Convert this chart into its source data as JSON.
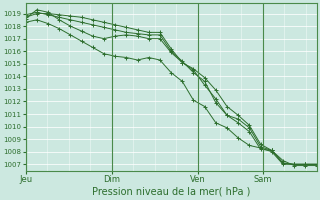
{
  "xlabel": "Pression niveau de la mer( hPa )",
  "bg_color": "#cce8e0",
  "grid_color": "#b8d8d0",
  "grid_color_major": "#a8c8c0",
  "line_color": "#2d6e2d",
  "spine_color": "#4a8a4a",
  "ylim": [
    1006.5,
    1019.8
  ],
  "yticks": [
    1007,
    1008,
    1009,
    1010,
    1011,
    1012,
    1013,
    1014,
    1015,
    1016,
    1017,
    1018,
    1019
  ],
  "xtick_labels": [
    "Jeu",
    "Dim",
    "Ven",
    "Sam"
  ],
  "xtick_positions": [
    0,
    8,
    16,
    22
  ],
  "xlim": [
    0,
    27
  ],
  "vlines": [
    0,
    8,
    16,
    22
  ],
  "n_x_minor": 4,
  "series": [
    [
      1018.7,
      1019.0,
      1019.0,
      1018.9,
      1018.8,
      1018.7,
      1018.5,
      1018.3,
      1018.1,
      1017.9,
      1017.7,
      1017.5,
      1017.5,
      1016.2,
      1015.1,
      1014.5,
      1013.3,
      1012.2,
      1010.9,
      1010.3,
      1009.6,
      1008.2,
      1008.1,
      1007.1,
      1007.0,
      1007.0,
      1007.0
    ],
    [
      1018.9,
      1019.1,
      1018.9,
      1018.7,
      1018.5,
      1018.3,
      1018.1,
      1017.9,
      1017.7,
      1017.5,
      1017.4,
      1017.3,
      1017.3,
      1016.0,
      1015.2,
      1014.3,
      1013.6,
      1011.9,
      1010.9,
      1010.6,
      1009.9,
      1008.4,
      1008.1,
      1007.1,
      1007.0,
      1007.0,
      1007.0
    ],
    [
      1018.3,
      1018.5,
      1018.2,
      1017.8,
      1017.3,
      1016.8,
      1016.3,
      1015.8,
      1015.6,
      1015.5,
      1015.3,
      1015.5,
      1015.3,
      1014.3,
      1013.6,
      1012.1,
      1011.6,
      1010.3,
      1009.9,
      1009.1,
      1008.5,
      1008.3,
      1008.0,
      1007.0,
      1007.0,
      1007.0,
      1007.0
    ],
    [
      1018.6,
      1019.3,
      1019.1,
      1018.5,
      1018.0,
      1017.6,
      1017.2,
      1017.0,
      1017.2,
      1017.3,
      1017.2,
      1017.0,
      1017.0,
      1015.9,
      1015.1,
      1014.6,
      1013.9,
      1012.9,
      1011.6,
      1010.9,
      1010.1,
      1008.6,
      1008.1,
      1007.3,
      1006.9,
      1006.9,
      1006.9
    ]
  ]
}
